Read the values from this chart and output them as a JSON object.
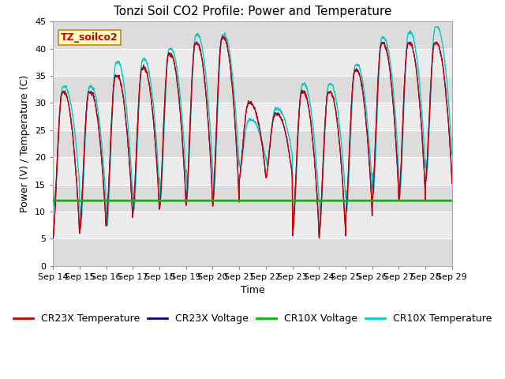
{
  "title": "Tonzi Soil CO2 Profile: Power and Temperature",
  "xlabel": "Time",
  "ylabel": "Power (V) / Temperature (C)",
  "ylim": [
    0,
    45
  ],
  "yticks": [
    0,
    5,
    10,
    15,
    20,
    25,
    30,
    35,
    40,
    45
  ],
  "x_tick_labels": [
    "Sep 14",
    "Sep 15",
    "Sep 16",
    "Sep 17",
    "Sep 18",
    "Sep 19",
    "Sep 20",
    "Sep 21",
    "Sep 22",
    "Sep 23",
    "Sep 24",
    "Sep 25",
    "Sep 26",
    "Sep 27",
    "Sep 28",
    "Sep 29"
  ],
  "annotation_label": "TZ_soilco2",
  "annotation_facecolor": "#FFFFCC",
  "annotation_edgecolor": "#CC8800",
  "cr23x_temp_color": "#CC0000",
  "cr23x_volt_color": "#000099",
  "cr10x_volt_color": "#00BB00",
  "cr10x_temp_color": "#00CCCC",
  "cr10x_volt_value": 12.0,
  "plot_bg_color": "#F5F5F5",
  "band_color_dark": "#E3E3E3",
  "band_color_light": "#EBEBEB",
  "title_fontsize": 11,
  "label_fontsize": 9,
  "tick_fontsize": 8,
  "legend_fontsize": 9,
  "figwidth": 6.4,
  "figheight": 4.8,
  "dpi": 100
}
